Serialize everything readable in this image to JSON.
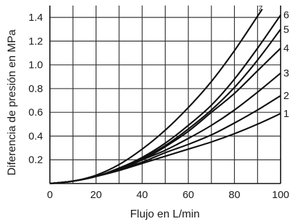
{
  "chart_data": {
    "type": "line",
    "xlabel": "Flujo en L/min",
    "ylabel": "Diferencia de presión en MPa",
    "xlim": [
      0,
      100
    ],
    "ylim": [
      0,
      1.5
    ],
    "x_ticks": [
      "0",
      "20",
      "40",
      "60",
      "80",
      "100"
    ],
    "y_ticks": [
      "0.2",
      "0.4",
      "0.6",
      "0.8",
      "1.0",
      "1.2",
      "1.4"
    ],
    "grid": true,
    "series": [
      {
        "name": "1",
        "x": [
          0,
          10,
          20,
          30,
          40,
          50,
          60,
          70,
          80,
          90,
          100
        ],
        "y": [
          0,
          0.02,
          0.06,
          0.11,
          0.17,
          0.23,
          0.29,
          0.35,
          0.42,
          0.5,
          0.59
        ]
      },
      {
        "name": "2",
        "x": [
          0,
          10,
          20,
          30,
          40,
          50,
          60,
          70,
          80,
          90,
          100
        ],
        "y": [
          0,
          0.02,
          0.06,
          0.12,
          0.18,
          0.26,
          0.33,
          0.41,
          0.51,
          0.62,
          0.74
        ]
      },
      {
        "name": "3",
        "x": [
          0,
          10,
          20,
          30,
          40,
          50,
          60,
          70,
          80,
          90,
          100
        ],
        "y": [
          0,
          0.02,
          0.06,
          0.12,
          0.2,
          0.28,
          0.38,
          0.49,
          0.62,
          0.77,
          0.93
        ]
      },
      {
        "name": "4",
        "x": [
          0,
          10,
          20,
          30,
          40,
          50,
          60,
          70,
          80,
          90,
          100
        ],
        "y": [
          0,
          0.02,
          0.06,
          0.12,
          0.2,
          0.31,
          0.44,
          0.6,
          0.76,
          0.95,
          1.14
        ]
      },
      {
        "name": "5",
        "x": [
          0,
          10,
          20,
          30,
          40,
          50,
          60,
          70,
          80,
          90,
          100
        ],
        "y": [
          0,
          0.02,
          0.06,
          0.12,
          0.21,
          0.32,
          0.46,
          0.62,
          0.81,
          1.04,
          1.3
        ]
      },
      {
        "name": "6",
        "x": [
          0,
          10,
          20,
          30,
          40,
          50,
          60,
          70,
          80,
          90,
          100
        ],
        "y": [
          0,
          0.02,
          0.06,
          0.13,
          0.22,
          0.34,
          0.49,
          0.66,
          0.88,
          1.14,
          1.42
        ]
      },
      {
        "name": "7",
        "x": [
          0,
          10,
          20,
          30,
          40,
          50,
          60,
          70,
          80,
          90,
          92
        ],
        "y": [
          0,
          0.02,
          0.07,
          0.16,
          0.29,
          0.45,
          0.64,
          0.86,
          1.12,
          1.41,
          1.47
        ]
      }
    ]
  }
}
